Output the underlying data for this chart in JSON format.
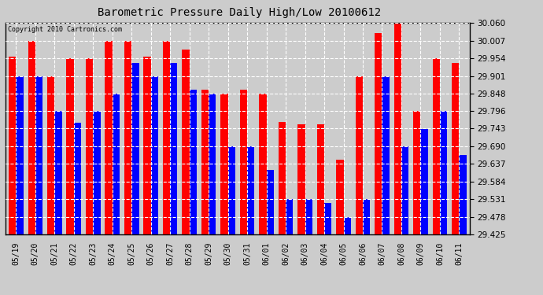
{
  "title": "Barometric Pressure Daily High/Low 20100612",
  "copyright": "Copyright 2010 Cartronics.com",
  "categories": [
    "05/19",
    "05/20",
    "05/21",
    "05/22",
    "05/23",
    "05/24",
    "05/25",
    "05/26",
    "05/27",
    "05/28",
    "05/29",
    "05/30",
    "05/31",
    "06/01",
    "06/02",
    "06/03",
    "06/04",
    "06/05",
    "06/06",
    "06/07",
    "06/08",
    "06/09",
    "06/10",
    "06/11"
  ],
  "highs": [
    29.96,
    30.007,
    29.901,
    29.954,
    29.954,
    30.007,
    30.007,
    29.96,
    30.007,
    29.98,
    29.86,
    29.848,
    29.86,
    29.848,
    29.763,
    29.757,
    29.757,
    29.65,
    29.901,
    30.03,
    30.06,
    29.796,
    29.954,
    29.94
  ],
  "lows": [
    29.901,
    29.901,
    29.796,
    29.76,
    29.796,
    29.848,
    29.94,
    29.901,
    29.94,
    29.86,
    29.848,
    29.69,
    29.69,
    29.62,
    29.531,
    29.531,
    29.519,
    29.478,
    29.531,
    29.901,
    29.69,
    29.742,
    29.796,
    29.663
  ],
  "high_color": "#ff0000",
  "low_color": "#0000ff",
  "bg_color": "#cccccc",
  "grid_color": "#ffffff",
  "ylim_min": 29.425,
  "ylim_max": 30.06,
  "yticks": [
    29.425,
    29.478,
    29.531,
    29.584,
    29.637,
    29.69,
    29.743,
    29.796,
    29.848,
    29.901,
    29.954,
    30.007,
    30.06
  ]
}
